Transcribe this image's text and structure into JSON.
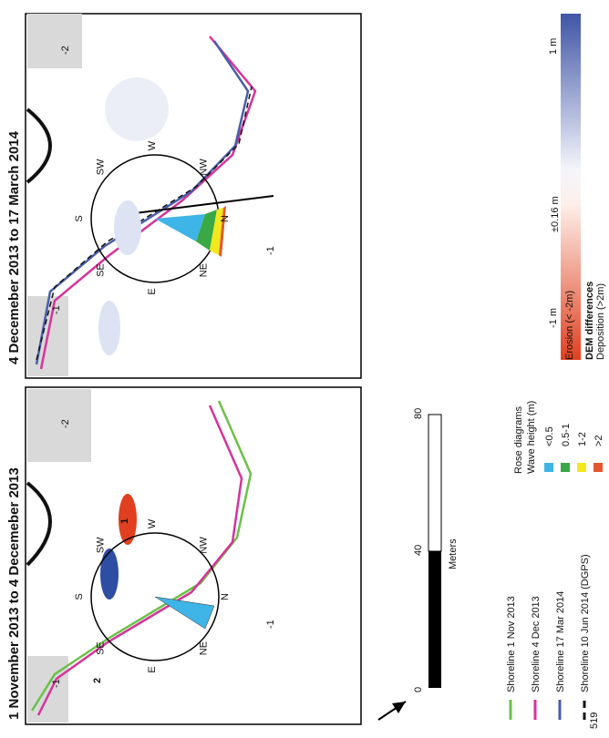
{
  "page_number": "519",
  "panels": [
    {
      "title": "1 November 2013  to 4 Decemeber 2013",
      "annotations": [
        "2",
        "1"
      ],
      "contours": [
        "-1",
        "-2",
        "-1"
      ]
    },
    {
      "title": "4 Decemeber 2013  to 17 March 2014",
      "contours": [
        "-1",
        "-2",
        "-1"
      ]
    }
  ],
  "compass": [
    "N",
    "NE",
    "E",
    "SE",
    "S",
    "SW",
    "W",
    "NW"
  ],
  "colorbar": {
    "title": "DEM differences",
    "top": "Deposition (>2m)",
    "labels": [
      "1 m",
      "±0.16 m",
      "-1 m"
    ],
    "bottom": "Erosion (< -2m)"
  },
  "shorelines": [
    {
      "label": "Shoreline 1 Nov 2013",
      "color": "#6cc04a"
    },
    {
      "label": "Shoreline 4 Dec 2013",
      "color": "#d6339b"
    },
    {
      "label": "Shoreline 17 Mar 2014",
      "color": "#4a5ea8"
    },
    {
      "label": "Shoreline 10 Jun 2014 (DGPS)",
      "color": "#111111"
    }
  ],
  "rose": {
    "title": "Rose diagrams",
    "subtitle": "Wave height (m)",
    "classes": [
      {
        "label": "<0.5",
        "color": "#3fb4e6"
      },
      {
        "label": "0.5-1",
        "color": "#3aa845"
      },
      {
        "label": "1-2",
        "color": "#f2e81c"
      },
      {
        "label": ">2",
        "color": "#e4572e"
      }
    ]
  },
  "scale": {
    "ticks": [
      "0",
      "40",
      "80"
    ],
    "unit": "Meters"
  }
}
